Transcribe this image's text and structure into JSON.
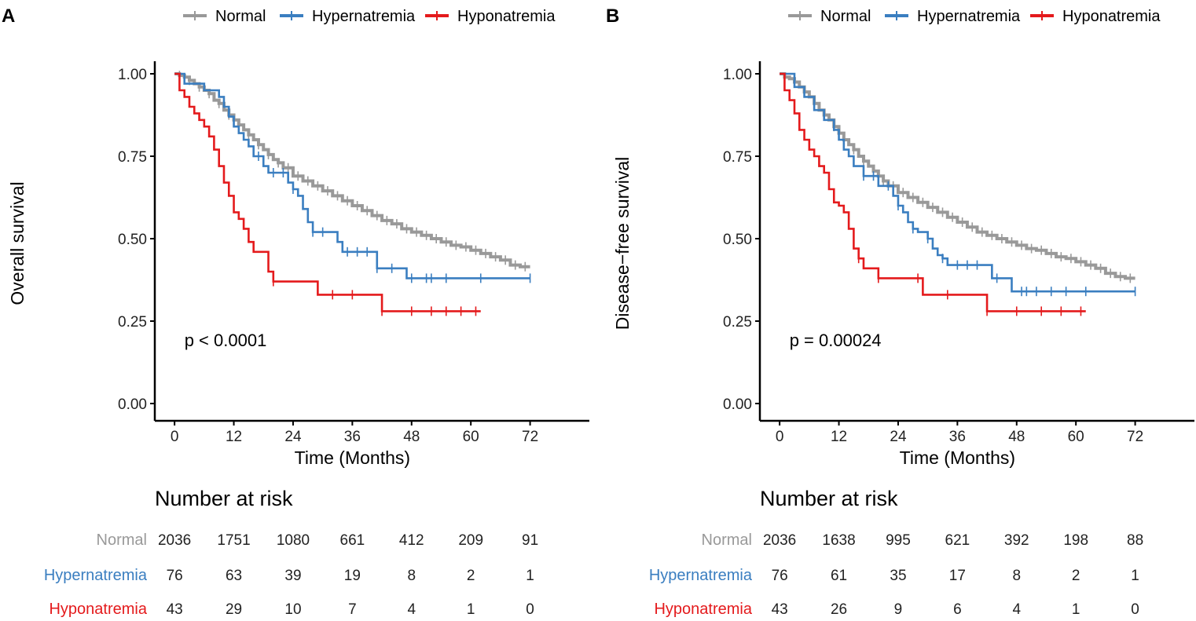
{
  "chart_data": [
    {
      "type": "kaplan-meier",
      "panel_label": "A",
      "ylabel": "Overall survival",
      "xlabel": "Time (Months)",
      "xlim": [
        -4,
        84
      ],
      "ylim": [
        0,
        1
      ],
      "x_ticks": [
        0,
        12,
        24,
        36,
        48,
        60,
        72
      ],
      "y_ticks": [
        0,
        0.25,
        0.5,
        0.75,
        1.0
      ],
      "y_tick_labels": [
        "0.00",
        "0.25",
        "0.50",
        "0.75",
        "1.00"
      ],
      "legend_position": "top",
      "pvalue": "p < 0.0001",
      "risk_table_title": "Number at risk",
      "series": [
        {
          "name": "Normal",
          "color": "#999999",
          "x": [
            0,
            1,
            2,
            3,
            4,
            5,
            6,
            7,
            8,
            9,
            10,
            11,
            12,
            13,
            14,
            15,
            16,
            17,
            18,
            19,
            20,
            21,
            22,
            24,
            26,
            28,
            30,
            32,
            34,
            36,
            38,
            40,
            42,
            44,
            46,
            48,
            50,
            52,
            54,
            56,
            58,
            60,
            62,
            64,
            66,
            68,
            70,
            72
          ],
          "y": [
            1,
            0.995,
            0.99,
            0.98,
            0.97,
            0.96,
            0.95,
            0.94,
            0.92,
            0.91,
            0.89,
            0.875,
            0.86,
            0.845,
            0.83,
            0.815,
            0.8,
            0.785,
            0.77,
            0.755,
            0.74,
            0.73,
            0.715,
            0.69,
            0.675,
            0.66,
            0.645,
            0.63,
            0.615,
            0.6,
            0.585,
            0.57,
            0.555,
            0.545,
            0.53,
            0.52,
            0.51,
            0.5,
            0.49,
            0.48,
            0.475,
            0.465,
            0.455,
            0.445,
            0.435,
            0.42,
            0.415,
            0.415
          ],
          "censor_x": [
            1,
            3,
            5,
            7,
            9,
            11,
            13,
            15,
            17,
            19,
            21,
            23,
            25,
            27,
            29,
            31,
            33,
            35,
            37,
            39,
            41,
            43,
            45,
            47,
            49,
            51,
            53,
            55,
            57,
            59,
            61,
            63,
            65,
            67,
            69,
            71
          ]
        },
        {
          "name": "Hypernatremia",
          "color": "#3A7EC0",
          "x": [
            0,
            2,
            6,
            9,
            10,
            11,
            12,
            13,
            14,
            15,
            16,
            18,
            19,
            20,
            23,
            24,
            25,
            26,
            27,
            28,
            29,
            30,
            32,
            33,
            34,
            35,
            36,
            40,
            41,
            42,
            47,
            48,
            60,
            72
          ],
          "y": [
            1,
            0.97,
            0.95,
            0.93,
            0.9,
            0.87,
            0.84,
            0.82,
            0.8,
            0.78,
            0.75,
            0.72,
            0.7,
            0.7,
            0.67,
            0.65,
            0.63,
            0.59,
            0.55,
            0.52,
            0.52,
            0.52,
            0.52,
            0.49,
            0.46,
            0.46,
            0.46,
            0.46,
            0.41,
            0.41,
            0.38,
            0.38,
            0.38,
            0.38
          ],
          "censor_x": [
            17,
            20,
            22,
            24,
            28,
            30,
            35,
            37,
            39,
            41,
            44,
            48,
            51,
            52,
            55,
            62,
            72
          ]
        },
        {
          "name": "Hyponatremia",
          "color": "#E41A1C",
          "x": [
            0,
            1,
            2,
            3,
            4,
            5,
            6,
            7,
            8,
            9,
            10,
            11,
            12,
            13,
            14,
            15,
            16,
            17,
            18,
            19,
            20,
            23,
            26,
            29,
            36,
            42,
            48,
            54,
            62
          ],
          "y": [
            1,
            0.95,
            0.93,
            0.9,
            0.88,
            0.86,
            0.84,
            0.81,
            0.77,
            0.72,
            0.67,
            0.63,
            0.58,
            0.56,
            0.53,
            0.49,
            0.46,
            0.46,
            0.46,
            0.4,
            0.37,
            0.37,
            0.37,
            0.33,
            0.33,
            0.28,
            0.28,
            0.28,
            0.28
          ],
          "censor_x": [
            20,
            32,
            36,
            42,
            48,
            52,
            55,
            58,
            61
          ]
        }
      ],
      "risk_table": {
        "time_points": [
          0,
          12,
          24,
          36,
          48,
          60,
          72
        ],
        "rows": [
          {
            "label": "Normal",
            "color": "#999999",
            "values": [
              "2036",
              "1751",
              "1080",
              "661",
              "412",
              "209",
              "91"
            ]
          },
          {
            "label": "Hypernatremia",
            "color": "#3A7EC0",
            "values": [
              "76",
              "63",
              "39",
              "19",
              "8",
              "2",
              "1"
            ]
          },
          {
            "label": "Hyponatremia",
            "color": "#E41A1C",
            "values": [
              "43",
              "29",
              "10",
              "7",
              "4",
              "1",
              "0"
            ]
          }
        ]
      }
    },
    {
      "type": "kaplan-meier",
      "panel_label": "B",
      "ylabel": "Disease−free survival",
      "xlabel": "Time (Months)",
      "xlim": [
        -4,
        84
      ],
      "ylim": [
        0,
        1
      ],
      "x_ticks": [
        0,
        12,
        24,
        36,
        48,
        60,
        72
      ],
      "y_ticks": [
        0,
        0.25,
        0.5,
        0.75,
        1.0
      ],
      "y_tick_labels": [
        "0.00",
        "0.25",
        "0.50",
        "0.75",
        "1.00"
      ],
      "legend_position": "top",
      "pvalue": "p = 0.00024",
      "risk_table_title": "Number at risk",
      "series": [
        {
          "name": "Normal",
          "color": "#999999",
          "x": [
            0,
            1,
            2,
            3,
            4,
            5,
            6,
            7,
            8,
            9,
            10,
            11,
            12,
            13,
            14,
            15,
            16,
            17,
            18,
            19,
            20,
            21,
            22,
            24,
            26,
            28,
            30,
            32,
            34,
            36,
            38,
            40,
            42,
            44,
            46,
            48,
            50,
            52,
            54,
            56,
            58,
            60,
            62,
            64,
            66,
            68,
            70,
            72
          ],
          "y": [
            1,
            0.99,
            0.985,
            0.975,
            0.96,
            0.945,
            0.93,
            0.91,
            0.89,
            0.875,
            0.86,
            0.84,
            0.82,
            0.8,
            0.785,
            0.77,
            0.75,
            0.735,
            0.72,
            0.705,
            0.69,
            0.675,
            0.66,
            0.64,
            0.625,
            0.61,
            0.595,
            0.58,
            0.565,
            0.55,
            0.535,
            0.52,
            0.51,
            0.5,
            0.49,
            0.48,
            0.47,
            0.465,
            0.455,
            0.445,
            0.44,
            0.43,
            0.42,
            0.41,
            0.395,
            0.385,
            0.38,
            0.38
          ],
          "censor_x": [
            1,
            3,
            5,
            7,
            9,
            11,
            13,
            15,
            17,
            19,
            21,
            23,
            25,
            27,
            29,
            31,
            33,
            35,
            37,
            39,
            41,
            43,
            45,
            47,
            49,
            51,
            53,
            55,
            57,
            59,
            61,
            63,
            65,
            67,
            69,
            71
          ]
        },
        {
          "name": "Hypernatremia",
          "color": "#3A7EC0",
          "x": [
            0,
            3,
            5,
            7,
            9,
            11,
            12,
            13,
            14,
            15,
            17,
            18,
            19,
            20,
            21,
            22,
            23,
            24,
            25,
            26,
            27,
            28,
            30,
            31,
            32,
            33,
            34,
            36,
            42,
            43,
            47,
            48,
            60,
            72
          ],
          "y": [
            1,
            0.96,
            0.93,
            0.89,
            0.86,
            0.83,
            0.8,
            0.77,
            0.75,
            0.72,
            0.69,
            0.69,
            0.69,
            0.66,
            0.66,
            0.66,
            0.63,
            0.6,
            0.58,
            0.55,
            0.53,
            0.52,
            0.5,
            0.47,
            0.45,
            0.44,
            0.42,
            0.42,
            0.42,
            0.38,
            0.34,
            0.34,
            0.34,
            0.34
          ],
          "censor_x": [
            17,
            19,
            22,
            24,
            27,
            30,
            33,
            36,
            38,
            40,
            44,
            49,
            50,
            52,
            55,
            58,
            62,
            72
          ]
        },
        {
          "name": "Hyponatremia",
          "color": "#E41A1C",
          "x": [
            0,
            1,
            2,
            3,
            4,
            5,
            6,
            7,
            8,
            9,
            10,
            11,
            12,
            13,
            14,
            15,
            16,
            17,
            18,
            19,
            20,
            23,
            26,
            29,
            36,
            42,
            48,
            54,
            62
          ],
          "y": [
            1,
            0.95,
            0.92,
            0.88,
            0.83,
            0.8,
            0.77,
            0.75,
            0.72,
            0.7,
            0.65,
            0.61,
            0.6,
            0.58,
            0.53,
            0.47,
            0.44,
            0.41,
            0.41,
            0.41,
            0.38,
            0.38,
            0.38,
            0.33,
            0.33,
            0.28,
            0.28,
            0.28,
            0.28
          ],
          "censor_x": [
            16,
            20,
            28,
            34,
            42,
            48,
            53,
            57,
            61
          ]
        }
      ],
      "risk_table": {
        "time_points": [
          0,
          12,
          24,
          36,
          48,
          60,
          72
        ],
        "rows": [
          {
            "label": "Normal",
            "color": "#999999",
            "values": [
              "2036",
              "1638",
              "995",
              "621",
              "392",
              "198",
              "88"
            ]
          },
          {
            "label": "Hypernatremia",
            "color": "#3A7EC0",
            "values": [
              "76",
              "61",
              "35",
              "17",
              "8",
              "2",
              "1"
            ]
          },
          {
            "label": "Hyponatremia",
            "color": "#E41A1C",
            "values": [
              "43",
              "26",
              "9",
              "6",
              "4",
              "1",
              "0"
            ]
          }
        ]
      }
    }
  ]
}
